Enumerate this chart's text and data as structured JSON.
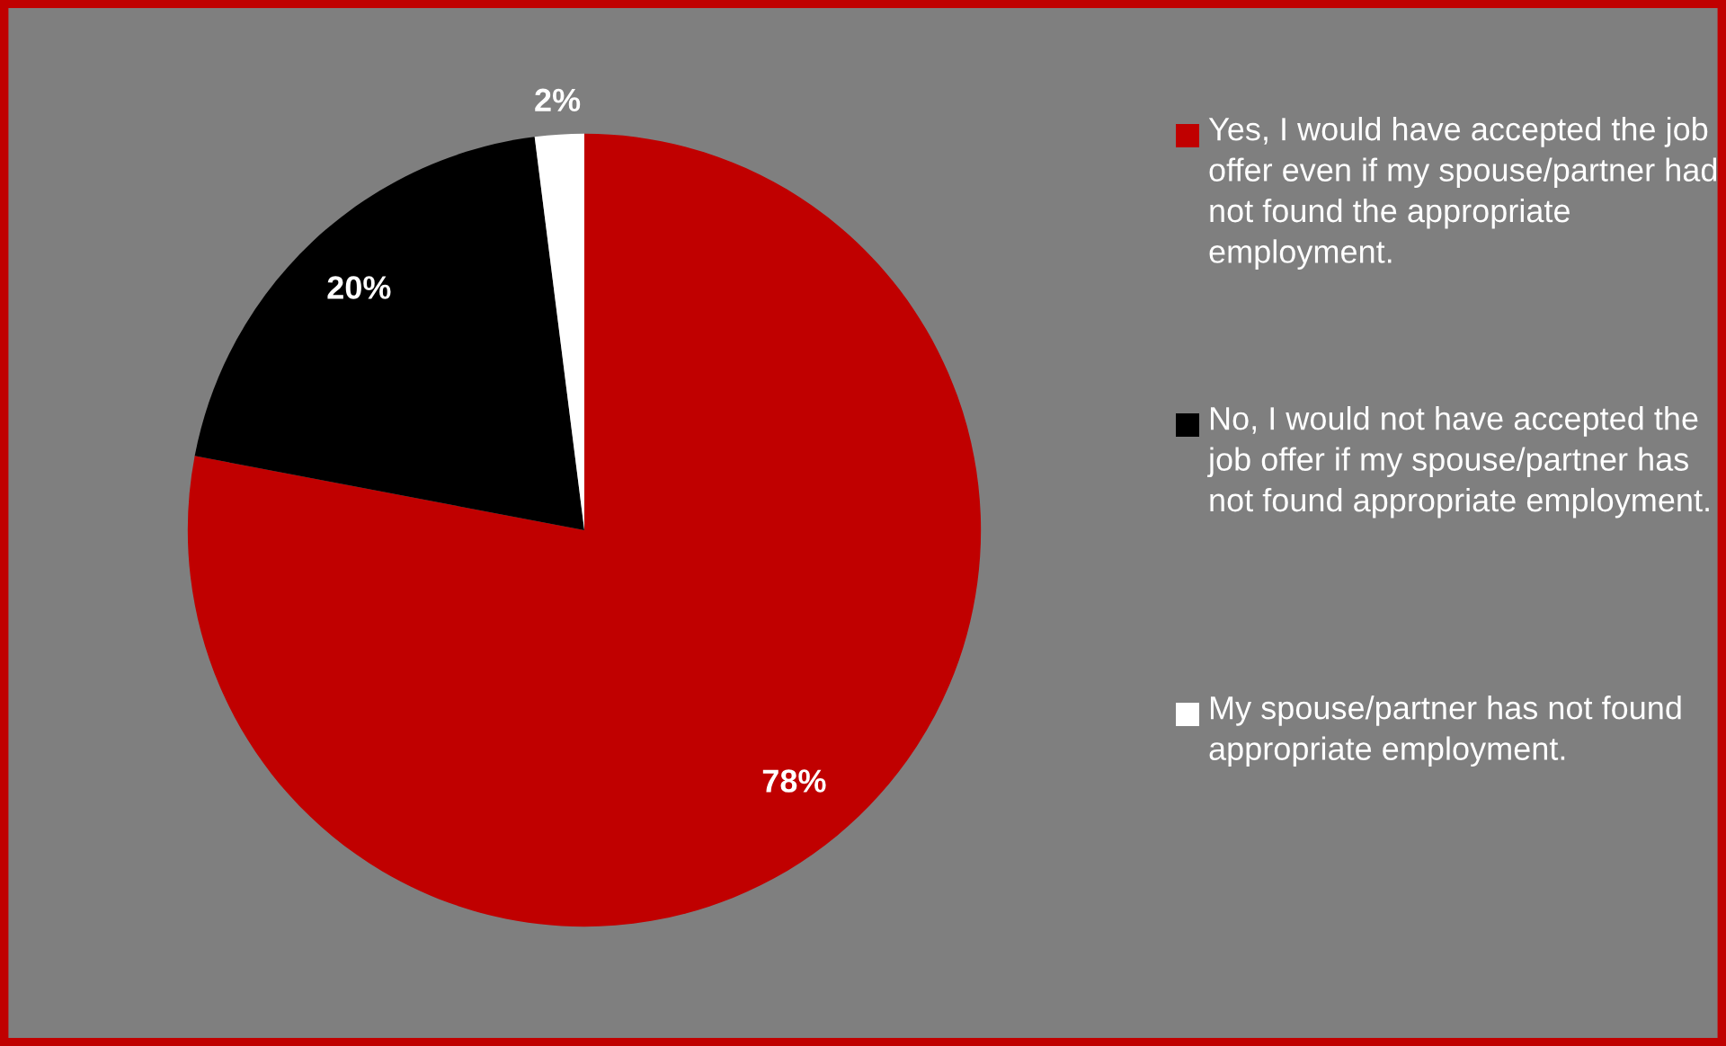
{
  "chart_data": {
    "type": "pie",
    "categories": [
      "Yes, I would have accepted the job offer even if my spouse/partner had not found the appropriate employment.",
      "No, I would not have accepted the job offer if my spouse/partner has not found appropriate employment.",
      "My spouse/partner has not found appropriate employment."
    ],
    "values": [
      78,
      20,
      2
    ],
    "colors": [
      "#c00000",
      "#000000",
      "#ffffff"
    ],
    "value_labels": [
      "78%",
      "20%",
      "2%"
    ],
    "legend": "right"
  }
}
